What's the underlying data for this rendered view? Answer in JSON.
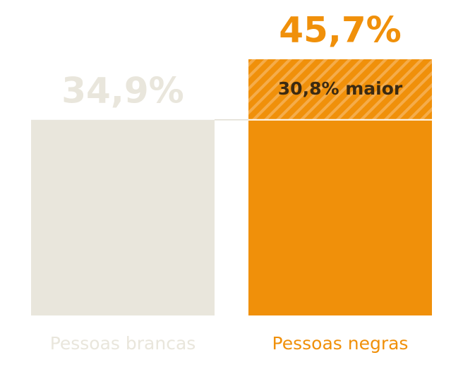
{
  "chart_data": {
    "type": "bar",
    "categories": [
      "Pessoas brancas",
      "Pessoas negras"
    ],
    "values": [
      34.9,
      45.7
    ],
    "value_labels": [
      "34,9%",
      "45,7%"
    ],
    "colors": [
      "#e9e6dc",
      "#f0900a"
    ],
    "annotation": "30,8% maior"
  }
}
